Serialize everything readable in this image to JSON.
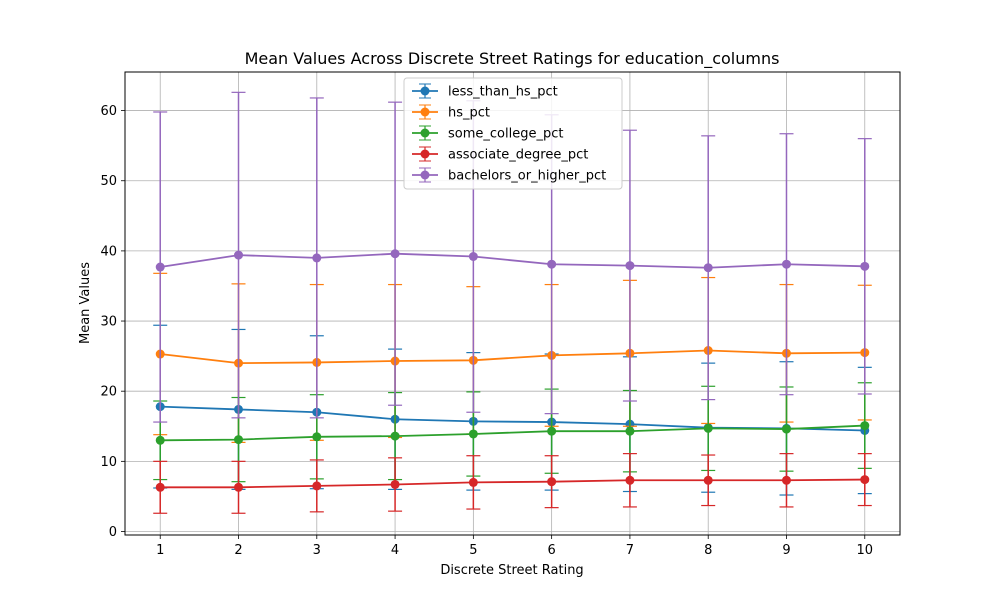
{
  "chart_data": {
    "type": "line",
    "title": "Mean Values Across Discrete Street Ratings for education_columns",
    "xlabel": "Discrete Street Rating",
    "ylabel": "Mean Values",
    "x": [
      1,
      2,
      3,
      4,
      5,
      6,
      7,
      8,
      9,
      10
    ],
    "xlim": [
      0.55,
      10.45
    ],
    "ylim": [
      -0.5,
      65.5
    ],
    "xticks": [
      1,
      2,
      3,
      4,
      5,
      6,
      7,
      8,
      9,
      10
    ],
    "yticks": [
      0,
      10,
      20,
      30,
      40,
      50,
      60
    ],
    "grid": true,
    "legend_position": "top-center",
    "error_bars": true,
    "series": [
      {
        "name": "less_than_hs_pct",
        "color": "#1f77b4",
        "values": [
          17.8,
          17.4,
          17.0,
          16.0,
          15.7,
          15.6,
          15.3,
          14.8,
          14.7,
          14.4
        ],
        "errors": [
          11.6,
          11.4,
          10.9,
          10.0,
          9.8,
          9.7,
          9.6,
          9.2,
          9.5,
          9.0
        ]
      },
      {
        "name": "hs_pct",
        "color": "#ff7f0e",
        "values": [
          25.3,
          24.0,
          24.1,
          24.3,
          24.4,
          25.1,
          25.4,
          25.8,
          25.4,
          25.5
        ],
        "errors": [
          11.5,
          11.3,
          11.1,
          10.9,
          10.5,
          10.1,
          10.4,
          10.4,
          9.8,
          9.6
        ]
      },
      {
        "name": "some_college_pct",
        "color": "#2ca02c",
        "values": [
          13.0,
          13.1,
          13.5,
          13.6,
          13.9,
          14.3,
          14.3,
          14.7,
          14.6,
          15.1
        ],
        "errors": [
          5.6,
          6.0,
          6.0,
          6.2,
          6.0,
          6.0,
          5.8,
          6.0,
          6.0,
          6.1
        ]
      },
      {
        "name": "associate_degree_pct",
        "color": "#d62728",
        "values": [
          6.3,
          6.3,
          6.5,
          6.7,
          7.0,
          7.1,
          7.3,
          7.3,
          7.3,
          7.4
        ],
        "errors": [
          3.7,
          3.7,
          3.7,
          3.8,
          3.8,
          3.7,
          3.8,
          3.6,
          3.8,
          3.7
        ]
      },
      {
        "name": "bachelors_or_higher_pct",
        "color": "#9467bd",
        "values": [
          37.7,
          39.4,
          39.0,
          39.6,
          39.2,
          38.1,
          37.9,
          37.6,
          38.1,
          37.8
        ],
        "errors": [
          22.1,
          23.2,
          22.8,
          21.6,
          22.2,
          21.3,
          19.3,
          18.8,
          18.6,
          18.2
        ]
      }
    ]
  }
}
